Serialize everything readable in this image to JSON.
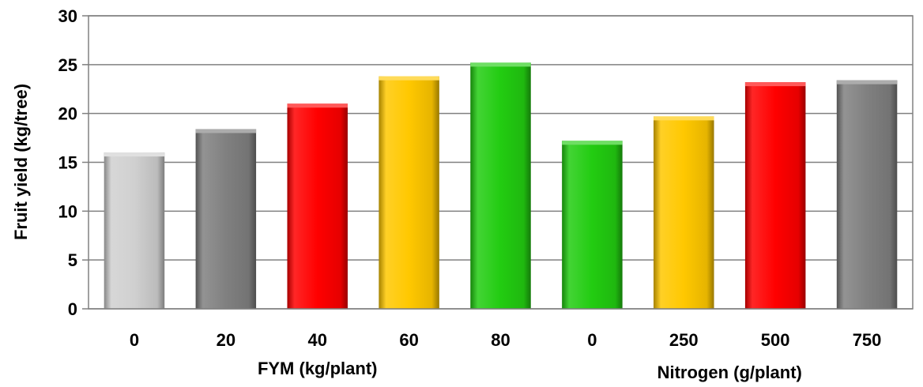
{
  "chart_data": {
    "type": "bar",
    "title": "",
    "ylabel": "Fruit yield (kg/tree)",
    "ylim": [
      0,
      30
    ],
    "yticks": [
      0,
      5,
      10,
      15,
      20,
      25,
      30
    ],
    "grid": true,
    "legend": "none",
    "groups": [
      {
        "label": "FYM (kg/plant)",
        "categories": [
          "0",
          "20",
          "40",
          "60",
          "80"
        ]
      },
      {
        "label": "Nitrogen (g/plant)",
        "categories": [
          "0",
          "250",
          "500",
          "750"
        ]
      }
    ],
    "categories": [
      "0",
      "20",
      "40",
      "60",
      "80",
      "0",
      "250",
      "500",
      "750"
    ],
    "values": [
      16.0,
      18.4,
      21.0,
      23.8,
      25.2,
      17.2,
      19.7,
      23.2,
      23.4
    ],
    "bar_colors": [
      "#d0d0d0",
      "#808080",
      "#ff0000",
      "#ffc800",
      "#22cc11",
      "#22cc11",
      "#ffc800",
      "#ff0000",
      "#808080"
    ]
  }
}
